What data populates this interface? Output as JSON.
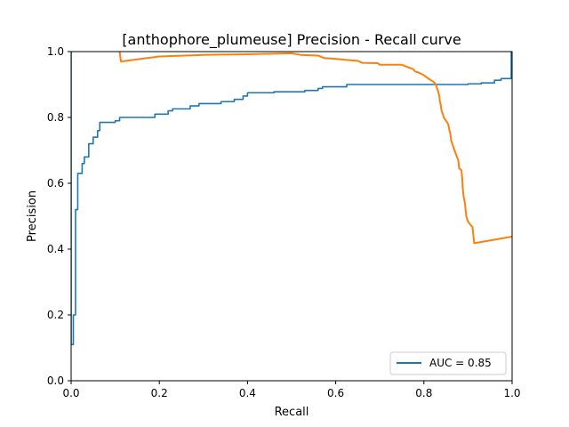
{
  "chart_data": {
    "type": "line",
    "title": "[anthophore_plumeuse] Precision - Recall curve",
    "xlabel": "Recall",
    "ylabel": "Precision",
    "xlim": [
      0,
      1
    ],
    "ylim": [
      0,
      1
    ],
    "x_ticks": [
      "0.0",
      "0.2",
      "0.4",
      "0.6",
      "0.8",
      "1.0"
    ],
    "y_ticks": [
      "0.0",
      "0.2",
      "0.4",
      "0.6",
      "0.8",
      "1.0"
    ],
    "grid": false,
    "legend_position": "lower-right",
    "legend": [
      "AUC = 0.85"
    ],
    "series": [
      {
        "name": "AUC = 0.85",
        "color": "#1f77b4",
        "step": true,
        "points": [
          [
            0.0,
            1.0
          ],
          [
            0.0,
            0.11
          ],
          [
            0.005,
            0.11
          ],
          [
            0.005,
            0.2
          ],
          [
            0.01,
            0.2
          ],
          [
            0.01,
            0.52
          ],
          [
            0.015,
            0.52
          ],
          [
            0.015,
            0.63
          ],
          [
            0.025,
            0.63
          ],
          [
            0.025,
            0.66
          ],
          [
            0.03,
            0.66
          ],
          [
            0.03,
            0.68
          ],
          [
            0.04,
            0.68
          ],
          [
            0.04,
            0.72
          ],
          [
            0.05,
            0.72
          ],
          [
            0.05,
            0.74
          ],
          [
            0.06,
            0.74
          ],
          [
            0.06,
            0.76
          ],
          [
            0.065,
            0.76
          ],
          [
            0.065,
            0.785
          ],
          [
            0.1,
            0.785
          ],
          [
            0.1,
            0.79
          ],
          [
            0.11,
            0.79
          ],
          [
            0.11,
            0.8
          ],
          [
            0.19,
            0.8
          ],
          [
            0.19,
            0.81
          ],
          [
            0.22,
            0.81
          ],
          [
            0.22,
            0.82
          ],
          [
            0.23,
            0.82
          ],
          [
            0.23,
            0.826
          ],
          [
            0.27,
            0.826
          ],
          [
            0.27,
            0.835
          ],
          [
            0.29,
            0.835
          ],
          [
            0.29,
            0.842
          ],
          [
            0.34,
            0.842
          ],
          [
            0.34,
            0.848
          ],
          [
            0.37,
            0.848
          ],
          [
            0.37,
            0.855
          ],
          [
            0.39,
            0.855
          ],
          [
            0.39,
            0.865
          ],
          [
            0.4,
            0.865
          ],
          [
            0.4,
            0.875
          ],
          [
            0.46,
            0.875
          ],
          [
            0.46,
            0.878
          ],
          [
            0.53,
            0.878
          ],
          [
            0.53,
            0.882
          ],
          [
            0.56,
            0.882
          ],
          [
            0.56,
            0.888
          ],
          [
            0.57,
            0.888
          ],
          [
            0.57,
            0.893
          ],
          [
            0.625,
            0.893
          ],
          [
            0.625,
            0.9
          ],
          [
            0.9,
            0.9
          ],
          [
            0.9,
            0.902
          ],
          [
            0.93,
            0.902
          ],
          [
            0.93,
            0.905
          ],
          [
            0.96,
            0.905
          ],
          [
            0.96,
            0.913
          ],
          [
            0.975,
            0.913
          ],
          [
            0.975,
            0.918
          ],
          [
            0.998,
            0.918
          ],
          [
            0.998,
            1.0
          ]
        ]
      },
      {
        "name": "",
        "color": "#ff7f0e",
        "step": false,
        "points": [
          [
            0.11,
            1.0
          ],
          [
            0.113,
            0.97
          ],
          [
            0.2,
            0.985
          ],
          [
            0.3,
            0.99
          ],
          [
            0.4,
            0.992
          ],
          [
            0.5,
            0.995
          ],
          [
            0.52,
            0.99
          ],
          [
            0.56,
            0.988
          ],
          [
            0.575,
            0.98
          ],
          [
            0.6,
            0.978
          ],
          [
            0.63,
            0.974
          ],
          [
            0.65,
            0.972
          ],
          [
            0.66,
            0.966
          ],
          [
            0.695,
            0.965
          ],
          [
            0.7,
            0.96
          ],
          [
            0.75,
            0.96
          ],
          [
            0.765,
            0.952
          ],
          [
            0.775,
            0.947
          ],
          [
            0.78,
            0.94
          ],
          [
            0.79,
            0.935
          ],
          [
            0.8,
            0.928
          ],
          [
            0.81,
            0.918
          ],
          [
            0.82,
            0.91
          ],
          [
            0.825,
            0.904
          ],
          [
            0.828,
            0.896
          ],
          [
            0.83,
            0.888
          ],
          [
            0.833,
            0.876
          ],
          [
            0.835,
            0.865
          ],
          [
            0.836,
            0.85
          ],
          [
            0.838,
            0.84
          ],
          [
            0.84,
            0.82
          ],
          [
            0.843,
            0.81
          ],
          [
            0.845,
            0.8
          ],
          [
            0.85,
            0.79
          ],
          [
            0.855,
            0.78
          ],
          [
            0.858,
            0.76
          ],
          [
            0.86,
            0.75
          ],
          [
            0.862,
            0.73
          ],
          [
            0.868,
            0.705
          ],
          [
            0.875,
            0.68
          ],
          [
            0.878,
            0.67
          ],
          [
            0.88,
            0.645
          ],
          [
            0.885,
            0.64
          ],
          [
            0.887,
            0.615
          ],
          [
            0.888,
            0.585
          ],
          [
            0.89,
            0.56
          ],
          [
            0.893,
            0.54
          ],
          [
            0.896,
            0.5
          ],
          [
            0.9,
            0.483
          ],
          [
            0.905,
            0.475
          ],
          [
            0.908,
            0.47
          ],
          [
            0.91,
            0.468
          ],
          [
            0.912,
            0.445
          ],
          [
            0.914,
            0.418
          ],
          [
            1.0,
            0.438
          ]
        ]
      }
    ]
  }
}
